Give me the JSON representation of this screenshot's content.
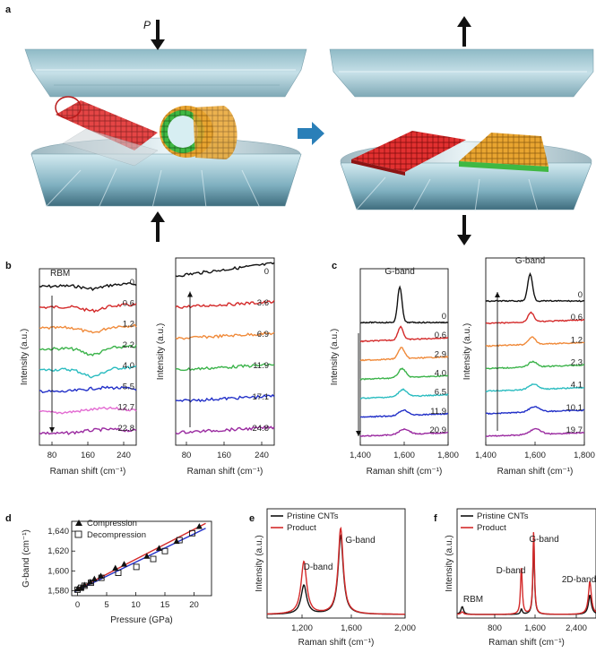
{
  "panel_letters": {
    "a": "a",
    "b": "b",
    "c": "c",
    "d": "d",
    "e": "e",
    "f": "f"
  },
  "panel_a": {
    "pressure_label": "P"
  },
  "colors": {
    "black": "#111111",
    "red": "#d42a2a",
    "orange": "#f08a3a",
    "green": "#3bb34a",
    "cyan": "#2bbcc0",
    "blue": "#2230c8",
    "pink": "#e36bd2",
    "purple": "#9a2aa0",
    "arrow_blue": "#2a7fb8",
    "anvil": "#9cc7d3",
    "compression": "#d42a2a",
    "decompression": "#2230c8"
  },
  "chart_data": [
    {
      "id": "b-left",
      "type": "line",
      "xlabel": "Raman shift (cm⁻¹)",
      "ylabel": "Intensity (a.u.)",
      "xlim": [
        60,
        260
      ],
      "xticks": [
        "80",
        "160",
        "240"
      ],
      "annotation": "RBM",
      "series": [
        {
          "name": "0",
          "color": "black"
        },
        {
          "name": "0.6",
          "color": "red"
        },
        {
          "name": "1.2",
          "color": "orange"
        },
        {
          "name": "2.2",
          "color": "green"
        },
        {
          "name": "4.0",
          "color": "cyan"
        },
        {
          "name": "5.5",
          "color": "blue"
        },
        {
          "name": "12.7",
          "color": "pink"
        },
        {
          "name": "22.8",
          "color": "purple"
        }
      ]
    },
    {
      "id": "b-right",
      "type": "line",
      "xlabel": "Raman shift (cm⁻¹)",
      "ylabel": "Intensity (a.u.)",
      "xlim": [
        60,
        260
      ],
      "xticks": [
        "80",
        "160",
        "240"
      ],
      "series": [
        {
          "name": "0",
          "color": "black"
        },
        {
          "name": "3.6",
          "color": "red"
        },
        {
          "name": "6.9",
          "color": "orange"
        },
        {
          "name": "11.9",
          "color": "green"
        },
        {
          "name": "17.1",
          "color": "blue"
        },
        {
          "name": "24.8",
          "color": "purple"
        }
      ]
    },
    {
      "id": "c-left",
      "type": "line",
      "xlabel": "Raman shift (cm⁻¹)",
      "ylabel": "Intensity (a.u.)",
      "xlim": [
        1400,
        1800
      ],
      "xticks": [
        "1,400",
        "1,600",
        "1,800"
      ],
      "annotation": "G-band",
      "series": [
        {
          "name": "0",
          "color": "black"
        },
        {
          "name": "0.6",
          "color": "red"
        },
        {
          "name": "2.9",
          "color": "orange"
        },
        {
          "name": "4.0",
          "color": "green"
        },
        {
          "name": "6.5",
          "color": "cyan"
        },
        {
          "name": "11.9",
          "color": "blue"
        },
        {
          "name": "20.9",
          "color": "purple"
        }
      ]
    },
    {
      "id": "c-right",
      "type": "line",
      "xlabel": "Raman shift (cm⁻¹)",
      "ylabel": "Intensity (a.u.)",
      "xlim": [
        1400,
        1800
      ],
      "xticks": [
        "1,400",
        "1,600",
        "1,800"
      ],
      "annotation": "G-band",
      "series": [
        {
          "name": "0",
          "color": "black"
        },
        {
          "name": "0.6",
          "color": "red"
        },
        {
          "name": "1.2",
          "color": "orange"
        },
        {
          "name": "2.3",
          "color": "green"
        },
        {
          "name": "4.1",
          "color": "cyan"
        },
        {
          "name": "10.1",
          "color": "blue"
        },
        {
          "name": "19.7",
          "color": "purple"
        }
      ]
    },
    {
      "id": "d",
      "type": "scatter",
      "xlabel": "Pressure (GPa)",
      "ylabel": "G-band (cm⁻¹)",
      "xlim": [
        -1,
        23
      ],
      "ylim": [
        1575,
        1650
      ],
      "xticks": [
        "0",
        "5",
        "10",
        "15",
        "20"
      ],
      "yticks": [
        "1,580",
        "1,600",
        "1,620",
        "1,640"
      ],
      "legend": [
        "Compression",
        "Decompression"
      ],
      "series": [
        {
          "name": "Compression",
          "marker": "filled-triangle",
          "x": [
            0,
            0.6,
            1.2,
            2.2,
            2.9,
            4.0,
            6.5,
            8,
            11.9,
            14,
            17,
            20.9
          ],
          "y": [
            1582,
            1583,
            1586,
            1589,
            1592,
            1595,
            1603,
            1607,
            1615,
            1623,
            1630,
            1645
          ]
        },
        {
          "name": "Decompression",
          "marker": "open-square",
          "x": [
            0,
            0.6,
            1.2,
            2.3,
            4.1,
            7,
            10.1,
            13,
            15,
            17.5,
            19.7
          ],
          "y": [
            1581,
            1583,
            1585,
            1588,
            1593,
            1598,
            1604,
            1612,
            1620,
            1631,
            1638
          ]
        }
      ],
      "fits": [
        {
          "color": "red",
          "x": [
            -0.5,
            22
          ],
          "y": [
            1580,
            1648
          ]
        },
        {
          "color": "blue",
          "x": [
            -0.5,
            22
          ],
          "y": [
            1579,
            1643
          ]
        }
      ]
    },
    {
      "id": "e",
      "type": "line",
      "xlabel": "Raman shift (cm⁻¹)",
      "ylabel": "Intensity (a.u.)",
      "xlim": [
        1100,
        2000
      ],
      "xticks": [
        "1,200",
        "1,600",
        "2,000"
      ],
      "legend": [
        "Pristine CNTs",
        "Product"
      ],
      "annotations": [
        "D-band",
        "G-band"
      ],
      "series": [
        {
          "name": "Pristine CNTs",
          "color": "black",
          "peaks": [
            {
              "x": 1340,
              "h": 0.33,
              "w": 22
            },
            {
              "x": 1580,
              "h": 0.9,
              "w": 20
            }
          ]
        },
        {
          "name": "Product",
          "color": "red",
          "peaks": [
            {
              "x": 1340,
              "h": 0.6,
              "w": 22
            },
            {
              "x": 1580,
              "h": 0.98,
              "w": 20
            }
          ]
        }
      ]
    },
    {
      "id": "f",
      "type": "line",
      "xlabel": "Raman shift (cm⁻¹)",
      "ylabel": "Intensity (a.u.)",
      "xlim": [
        80,
        2800
      ],
      "xticks": [
        "800",
        "1,600",
        "2,400"
      ],
      "legend": [
        "Pristine CNTs",
        "Product"
      ],
      "annotations": [
        "RBM",
        "D-band",
        "G-band",
        "2D-band"
      ],
      "series": [
        {
          "name": "Pristine CNTs",
          "color": "black",
          "peaks": [
            {
              "x": 180,
              "h": 0.09,
              "w": 30
            },
            {
              "x": 1340,
              "h": 0.06,
              "w": 20
            },
            {
              "x": 1580,
              "h": 0.9,
              "w": 18
            },
            {
              "x": 2680,
              "h": 0.22,
              "w": 35
            }
          ]
        },
        {
          "name": "Product",
          "color": "red",
          "peaks": [
            {
              "x": 180,
              "h": 0.03,
              "w": 30
            },
            {
              "x": 1340,
              "h": 0.55,
              "w": 20
            },
            {
              "x": 1580,
              "h": 0.98,
              "w": 18
            },
            {
              "x": 2680,
              "h": 0.38,
              "w": 35
            }
          ]
        }
      ]
    }
  ]
}
